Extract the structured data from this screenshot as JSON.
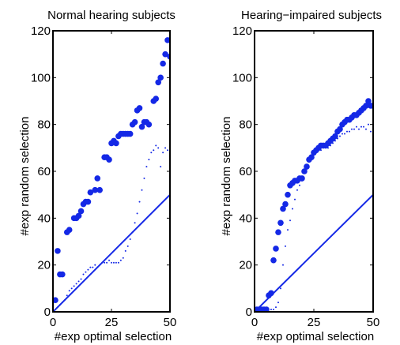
{
  "colors": {
    "series": "#1428e6",
    "axis": "#000000"
  },
  "chart_data": [
    {
      "type": "scatter",
      "title": "Normal hearing subjects",
      "xlabel": "#exp optimal selection",
      "ylabel": "#exp random selection",
      "xlim": [
        0,
        50
      ],
      "ylim": [
        0,
        120
      ],
      "xticks": [
        "0",
        "25",
        "50"
      ],
      "yticks": [
        "0",
        "20",
        "40",
        "60",
        "80",
        "100",
        "120"
      ],
      "grid": false,
      "series": [
        {
          "marker": "large-dot",
          "points": [
            [
              1,
              5
            ],
            [
              2,
              26
            ],
            [
              3,
              16
            ],
            [
              4,
              16
            ],
            [
              6,
              34
            ],
            [
              7,
              35
            ],
            [
              9,
              40
            ],
            [
              10,
              40
            ],
            [
              11,
              41
            ],
            [
              12,
              43
            ],
            [
              13,
              46
            ],
            [
              14,
              47
            ],
            [
              15,
              47
            ],
            [
              16,
              51
            ],
            [
              18,
              52
            ],
            [
              19,
              57
            ],
            [
              20,
              52
            ],
            [
              22,
              66
            ],
            [
              23,
              66
            ],
            [
              24,
              65
            ],
            [
              25,
              72
            ],
            [
              26,
              73
            ],
            [
              27,
              72
            ],
            [
              28,
              75
            ],
            [
              29,
              76
            ],
            [
              30,
              76
            ],
            [
              31,
              76
            ],
            [
              32,
              76
            ],
            [
              33,
              76
            ],
            [
              34,
              80
            ],
            [
              35,
              81
            ],
            [
              36,
              86
            ],
            [
              37,
              87
            ],
            [
              38,
              79
            ],
            [
              39,
              81
            ],
            [
              40,
              81
            ],
            [
              41,
              80
            ],
            [
              43,
              90
            ],
            [
              44,
              91
            ],
            [
              45,
              98
            ],
            [
              46,
              100
            ],
            [
              47,
              106
            ],
            [
              48,
              110
            ],
            [
              49,
              116
            ],
            [
              50,
              109
            ]
          ]
        },
        {
          "marker": "small-dot",
          "points": [
            [
              1,
              1
            ],
            [
              2,
              2
            ],
            [
              3,
              3
            ],
            [
              4,
              4
            ],
            [
              5,
              5
            ],
            [
              6,
              7
            ],
            [
              7,
              9
            ],
            [
              8,
              10
            ],
            [
              9,
              11
            ],
            [
              10,
              12
            ],
            [
              11,
              13
            ],
            [
              12,
              14
            ],
            [
              13,
              16
            ],
            [
              14,
              17
            ],
            [
              15,
              18
            ],
            [
              16,
              19
            ],
            [
              17,
              19
            ],
            [
              18,
              20
            ],
            [
              19,
              19
            ],
            [
              20,
              20
            ],
            [
              21,
              21
            ],
            [
              22,
              21
            ],
            [
              23,
              21
            ],
            [
              24,
              22
            ],
            [
              25,
              21
            ],
            [
              26,
              21
            ],
            [
              27,
              21
            ],
            [
              28,
              21
            ],
            [
              29,
              22
            ],
            [
              30,
              23
            ],
            [
              31,
              26
            ],
            [
              32,
              28
            ],
            [
              33,
              31
            ],
            [
              34,
              34
            ],
            [
              35,
              38
            ],
            [
              36,
              42
            ],
            [
              37,
              47
            ],
            [
              38,
              52
            ],
            [
              39,
              57
            ],
            [
              40,
              62
            ],
            [
              41,
              65
            ],
            [
              42,
              68
            ],
            [
              43,
              69
            ],
            [
              44,
              71
            ],
            [
              45,
              70
            ],
            [
              46,
              62
            ],
            [
              47,
              68
            ],
            [
              48,
              70
            ],
            [
              49,
              69
            ],
            [
              50,
              69
            ]
          ]
        },
        {
          "marker": "line",
          "points": [
            [
              0,
              0
            ],
            [
              50,
              50
            ]
          ]
        }
      ]
    },
    {
      "type": "scatter",
      "title": "Hearing−impaired subjects",
      "xlabel": "#exp optimal selection",
      "ylabel": "#exp random selection",
      "xlim": [
        0,
        50
      ],
      "ylim": [
        0,
        120
      ],
      "xticks": [
        "0",
        "25",
        "50"
      ],
      "yticks": [
        "0",
        "20",
        "40",
        "60",
        "80",
        "100",
        "120"
      ],
      "grid": false,
      "series": [
        {
          "marker": "large-dot",
          "points": [
            [
              1,
              1
            ],
            [
              2,
              1
            ],
            [
              3,
              1
            ],
            [
              4,
              1
            ],
            [
              5,
              1
            ],
            [
              6,
              7
            ],
            [
              7,
              8
            ],
            [
              8,
              22
            ],
            [
              9,
              27
            ],
            [
              10,
              34
            ],
            [
              11,
              38
            ],
            [
              12,
              44
            ],
            [
              13,
              46
            ],
            [
              14,
              50
            ],
            [
              15,
              54
            ],
            [
              16,
              55
            ],
            [
              17,
              56
            ],
            [
              18,
              56
            ],
            [
              19,
              57
            ],
            [
              20,
              57
            ],
            [
              21,
              60
            ],
            [
              22,
              62
            ],
            [
              23,
              65
            ],
            [
              24,
              66
            ],
            [
              25,
              68
            ],
            [
              26,
              69
            ],
            [
              27,
              70
            ],
            [
              28,
              71
            ],
            [
              29,
              71
            ],
            [
              30,
              71
            ],
            [
              31,
              72
            ],
            [
              32,
              73
            ],
            [
              33,
              74
            ],
            [
              34,
              75
            ],
            [
              35,
              77
            ],
            [
              36,
              78
            ],
            [
              37,
              80
            ],
            [
              38,
              81
            ],
            [
              39,
              82
            ],
            [
              40,
              82
            ],
            [
              41,
              83
            ],
            [
              42,
              84
            ],
            [
              43,
              84
            ],
            [
              44,
              85
            ],
            [
              45,
              86
            ],
            [
              46,
              87
            ],
            [
              47,
              88
            ],
            [
              48,
              90
            ],
            [
              49,
              88
            ],
            [
              50,
              88
            ]
          ]
        },
        {
          "marker": "small-dot",
          "points": [
            [
              1,
              0
            ],
            [
              2,
              0
            ],
            [
              3,
              0
            ],
            [
              4,
              0
            ],
            [
              5,
              0
            ],
            [
              6,
              0
            ],
            [
              7,
              1
            ],
            [
              8,
              1
            ],
            [
              9,
              2
            ],
            [
              10,
              4
            ],
            [
              11,
              10
            ],
            [
              12,
              20
            ],
            [
              13,
              28
            ],
            [
              14,
              35
            ],
            [
              15,
              39
            ],
            [
              16,
              44
            ],
            [
              17,
              48
            ],
            [
              18,
              52
            ],
            [
              19,
              54
            ],
            [
              20,
              56
            ],
            [
              21,
              60
            ],
            [
              22,
              62
            ],
            [
              23,
              64
            ],
            [
              24,
              66
            ],
            [
              25,
              68
            ],
            [
              26,
              68
            ],
            [
              27,
              69
            ],
            [
              28,
              69
            ],
            [
              29,
              70
            ],
            [
              30,
              70
            ],
            [
              31,
              70
            ],
            [
              32,
              71
            ],
            [
              33,
              72
            ],
            [
              34,
              73
            ],
            [
              35,
              74
            ],
            [
              36,
              75
            ],
            [
              37,
              76
            ],
            [
              38,
              76
            ],
            [
              39,
              77
            ],
            [
              40,
              77
            ],
            [
              41,
              78
            ],
            [
              42,
              78
            ],
            [
              43,
              79
            ],
            [
              44,
              78
            ],
            [
              45,
              79
            ],
            [
              46,
              79
            ],
            [
              47,
              78
            ],
            [
              48,
              80
            ],
            [
              49,
              77
            ],
            [
              50,
              77
            ]
          ]
        },
        {
          "marker": "line",
          "points": [
            [
              0,
              0
            ],
            [
              50,
              50
            ]
          ]
        }
      ]
    }
  ]
}
